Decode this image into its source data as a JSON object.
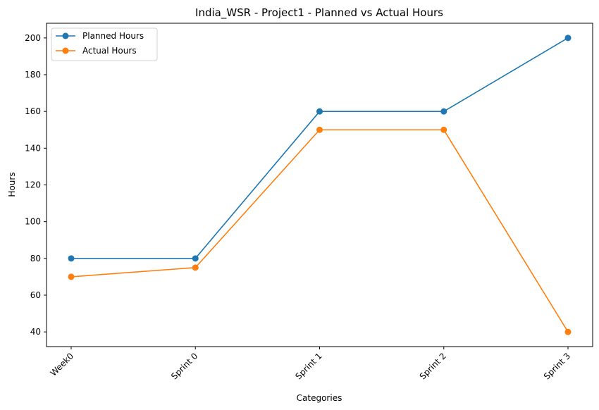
{
  "chart_data": {
    "type": "line",
    "title": "India_WSR - Project1 - Planned vs Actual Hours",
    "xlabel": "Categories",
    "ylabel": "Hours",
    "categories": [
      "Week0",
      "Sprint 0",
      "Sprint 1",
      "Sprint 2",
      "Sprint 3"
    ],
    "ylim": [
      32,
      208
    ],
    "yticks": [
      40,
      60,
      80,
      100,
      120,
      140,
      160,
      180,
      200
    ],
    "grid": false,
    "legend_position": "top-left",
    "series": [
      {
        "name": "Planned Hours",
        "color": "#1f77b4",
        "values": [
          80,
          80,
          160,
          160,
          200
        ]
      },
      {
        "name": "Actual Hours",
        "color": "#ff7f0e",
        "values": [
          70,
          75,
          150,
          150,
          40
        ]
      }
    ]
  }
}
